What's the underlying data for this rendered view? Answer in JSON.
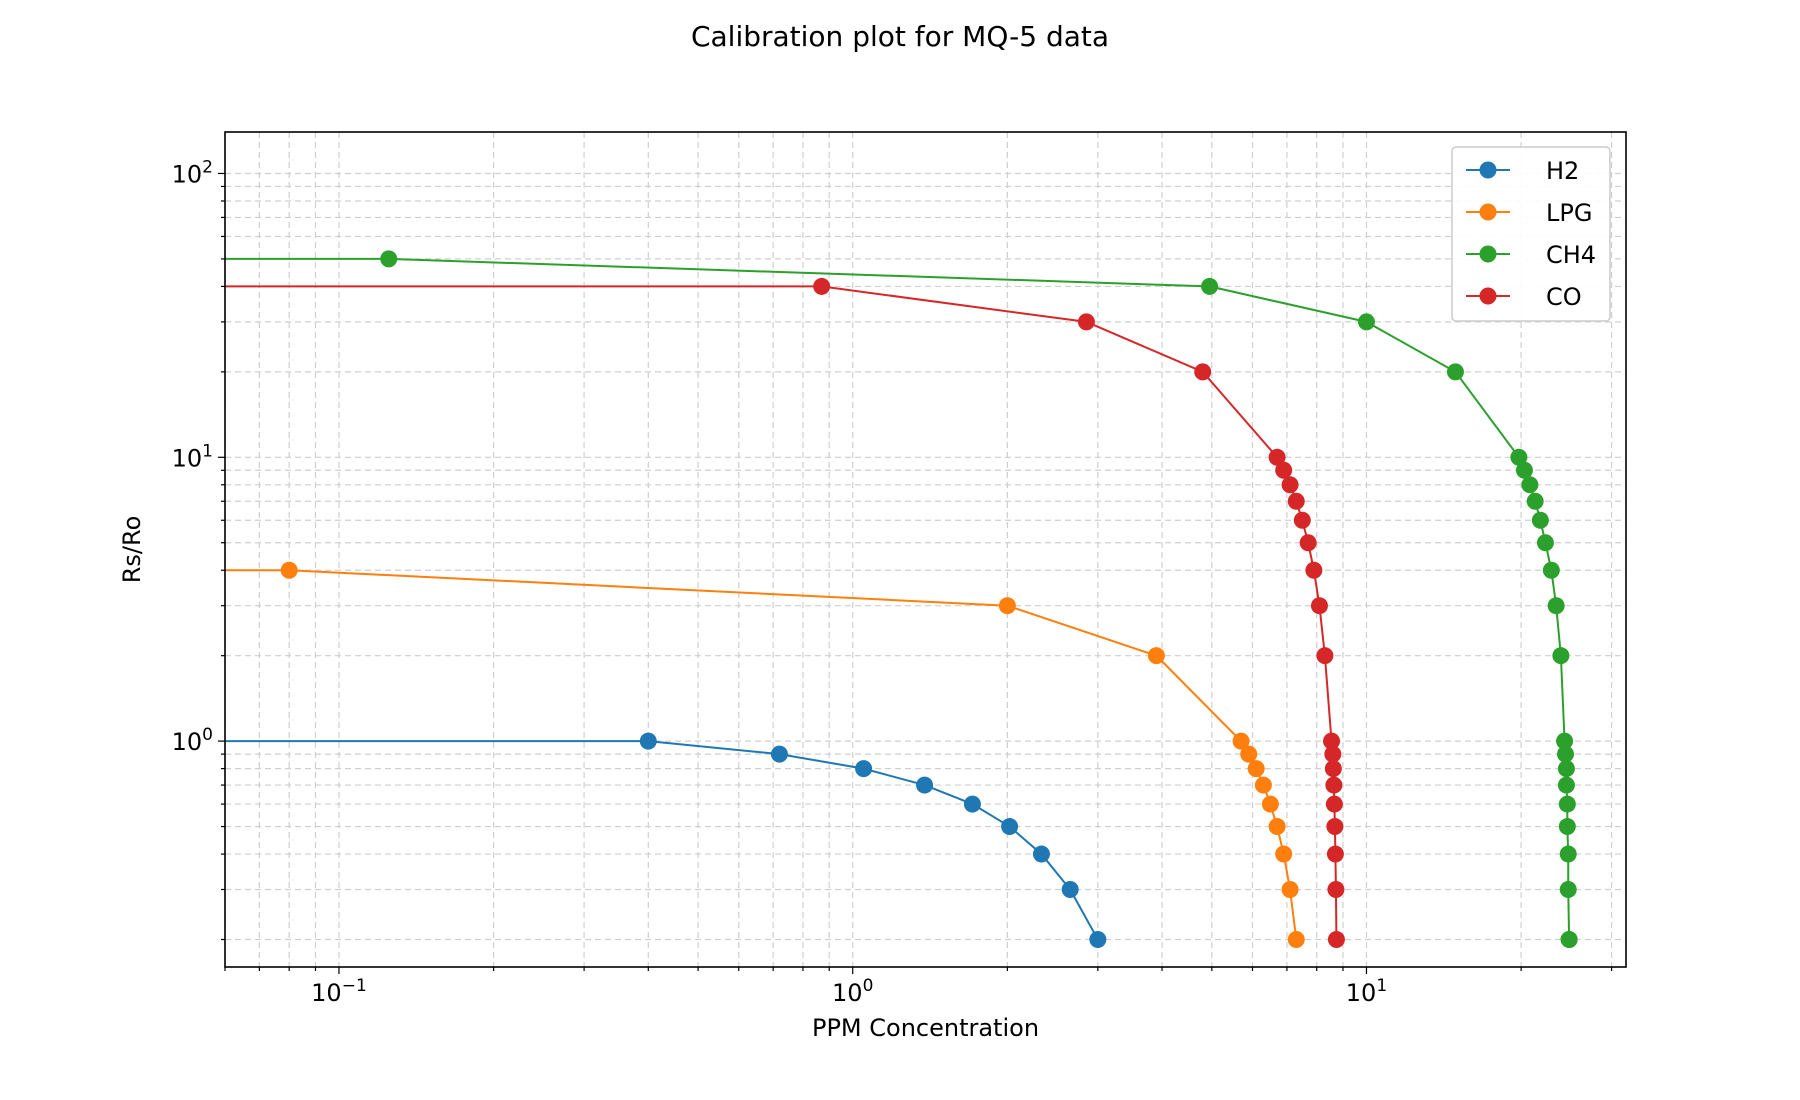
{
  "chart_data": {
    "type": "line",
    "title": "Calibration plot for MQ-5 data",
    "xlabel": "PPM Concentration",
    "ylabel": "Rs/Ro",
    "xscale": "log",
    "yscale": "log",
    "xlim": [
      0.06,
      32
    ],
    "ylim": [
      0.16,
      140
    ],
    "grid": "both",
    "legend_position": "top-right",
    "x_tick_labels": [
      {
        "base": "10",
        "exp": "−1"
      },
      {
        "base": "10",
        "exp": "0"
      },
      {
        "base": "10",
        "exp": "1"
      }
    ],
    "y_tick_labels": [
      {
        "base": "10",
        "exp": "0"
      },
      {
        "base": "10",
        "exp": "1"
      },
      {
        "base": "10",
        "exp": "2"
      }
    ],
    "series": [
      {
        "name": "H2",
        "color": "#1f77b4",
        "x": [
          0.06,
          0.4,
          0.72,
          1.05,
          1.38,
          1.71,
          2.02,
          2.33,
          2.65,
          3.0
        ],
        "y": [
          1.0,
          1.0,
          0.9,
          0.8,
          0.7,
          0.6,
          0.5,
          0.4,
          0.3,
          0.2
        ],
        "marker_start": 1
      },
      {
        "name": "LPG",
        "color": "#ff7f0e",
        "x": [
          0.06,
          0.08,
          2.0,
          3.9,
          5.7,
          5.9,
          6.1,
          6.3,
          6.5,
          6.7,
          6.9,
          7.1,
          7.3
        ],
        "y": [
          4.0,
          4.0,
          3.0,
          2.0,
          1.0,
          0.9,
          0.8,
          0.7,
          0.6,
          0.5,
          0.4,
          0.3,
          0.2
        ],
        "marker_start": 1
      },
      {
        "name": "CH4",
        "color": "#2ca02c",
        "x": [
          0.06,
          0.125,
          4.95,
          10.0,
          14.9,
          19.8,
          20.3,
          20.8,
          21.3,
          21.8,
          22.3,
          22.9,
          23.4,
          23.9,
          24.3,
          24.4,
          24.5,
          24.5,
          24.6,
          24.6,
          24.7,
          24.7,
          24.8,
          24.8
        ],
        "y": [
          50,
          50,
          40,
          30,
          20,
          10,
          9,
          8,
          7,
          6,
          5,
          4,
          3,
          2,
          1.0,
          0.9,
          0.8,
          0.7,
          0.6,
          0.5,
          0.4,
          0.3,
          0.2,
          0.2
        ],
        "marker_start": 1
      },
      {
        "name": "CO",
        "color": "#d62728",
        "x": [
          0.06,
          0.87,
          2.85,
          4.8,
          6.7,
          6.9,
          7.1,
          7.3,
          7.5,
          7.7,
          7.9,
          8.1,
          8.3,
          8.55,
          8.6,
          8.62,
          8.64,
          8.66,
          8.68,
          8.7,
          8.72,
          8.74
        ],
        "y": [
          40,
          40,
          30,
          20,
          10,
          9,
          8,
          7,
          6,
          5,
          4,
          3,
          2,
          1.0,
          0.9,
          0.8,
          0.7,
          0.6,
          0.5,
          0.4,
          0.3,
          0.2
        ],
        "marker_start": 1
      }
    ]
  }
}
